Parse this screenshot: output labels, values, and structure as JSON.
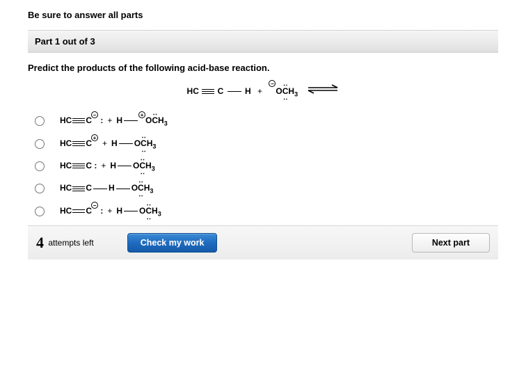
{
  "instruction": "Be sure to answer all parts",
  "part_bar": "Part 1 out of 3",
  "question": "Predict the products of the following acid-base reaction.",
  "reaction": {
    "left_species": {
      "a": "HC",
      "b": "C",
      "c": "H",
      "bond_ab": "triple",
      "bond_bc": "single"
    },
    "plus": "+",
    "right_species": {
      "charge": "−",
      "O_lp": "both",
      "label": "OCH",
      "sub": "3"
    },
    "arrow_color": "#000000"
  },
  "options": [
    {
      "left": {
        "a": "HC",
        "b": "C",
        "bond": "triple",
        "colon": true,
        "charge": "−"
      },
      "sep": "+",
      "right": {
        "h": "H",
        "bond": "single",
        "charge": "+",
        "O_lp": "top",
        "label": "OCH",
        "sub": "3"
      }
    },
    {
      "left": {
        "a": "HC",
        "b": "C",
        "bond": "triple",
        "colon": false,
        "charge": "+"
      },
      "sep": "+",
      "right": {
        "h": "H",
        "bond": "single",
        "charge": "",
        "O_lp": "both",
        "label": "OCH",
        "sub": "3"
      }
    },
    {
      "left": {
        "a": "HC",
        "b": "C",
        "bond": "triple",
        "colon": true,
        "charge": ""
      },
      "sep": "+",
      "right": {
        "h": "H",
        "bond": "single",
        "charge": "",
        "O_lp": "both",
        "label": "OCH",
        "sub": "3"
      }
    },
    {
      "left": {
        "a": "HC",
        "b": "C",
        "bond": "triple",
        "colon": false,
        "charge": ""
      },
      "sep": "",
      "right": {
        "h": "H",
        "bond_pre": "single",
        "bond": "single",
        "charge": "",
        "O_lp": "both",
        "label": "OCH",
        "sub": "3"
      }
    },
    {
      "left": {
        "a": "HC",
        "b": "C",
        "bond": "double",
        "colon": true,
        "charge": "−"
      },
      "sep": "+",
      "right": {
        "h": "H",
        "bond": "single",
        "charge": "",
        "O_lp": "both",
        "label": "OCH",
        "sub": "3"
      }
    }
  ],
  "footer": {
    "attempts_num": "4",
    "attempts_text": "attempts left",
    "check": "Check my work",
    "next": "Next part"
  },
  "colors": {
    "button_blue": "#1f6bbf",
    "bar_bg": "#ececec"
  }
}
